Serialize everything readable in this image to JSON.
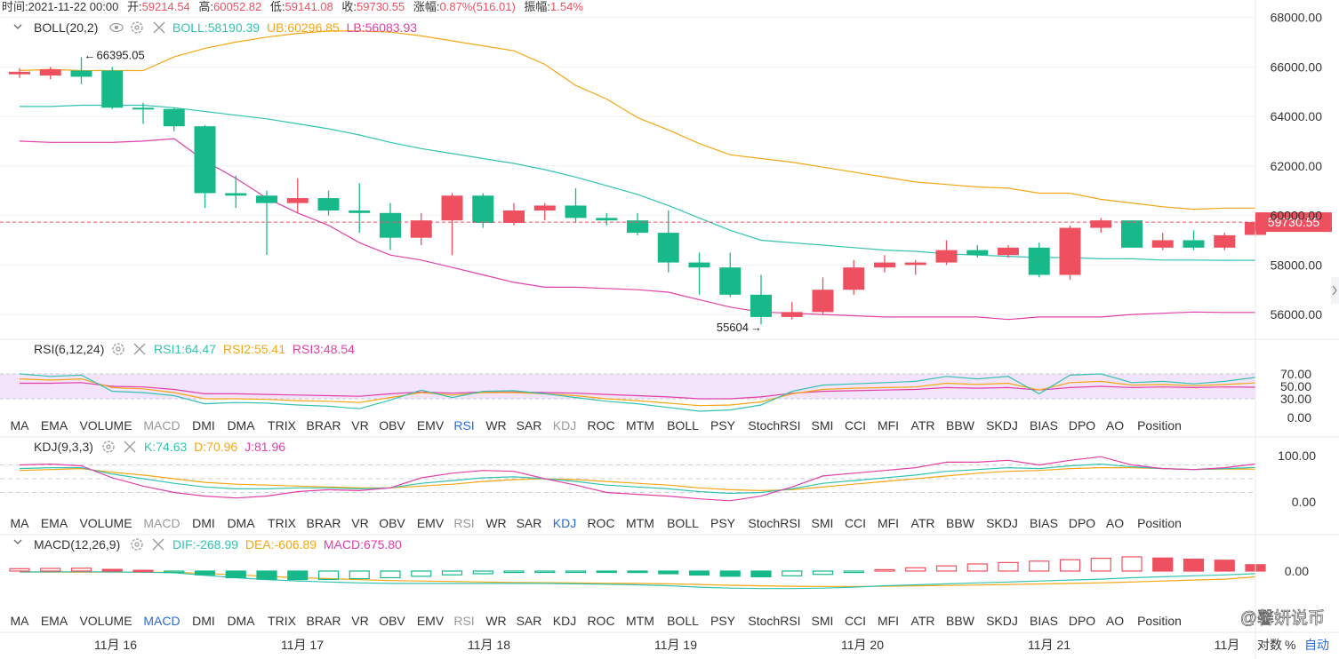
{
  "info_bar": {
    "time_label": "时间:",
    "time": "2021-11-22 00:00",
    "open_label": "开:",
    "open": "59214.54",
    "high_label": "高:",
    "high": "60052.82",
    "low_label": "低:",
    "low": "59141.08",
    "close_label": "收:",
    "close": "59730.55",
    "change_label": "涨幅:",
    "change": "0.87%(516.01)",
    "amplitude_label": "振幅:",
    "amplitude": "1.54%"
  },
  "colors": {
    "up": "#ef5060",
    "down": "#17b98a",
    "boll": "#33c3b0",
    "ub": "#f5a614",
    "lb": "#e040a8",
    "rsi1": "#33c3b0",
    "rsi2": "#f5a614",
    "rsi3": "#e040a8",
    "kdj_k": "#33c3b0",
    "kdj_d": "#f5a614",
    "kdj_j": "#e040a8",
    "active_tab": "#2b6bd9"
  },
  "main_pane": {
    "indicator_label": "BOLL(20,2)",
    "boll_value": "BOLL:58190.39",
    "ub_value": "UB:60296.85",
    "lb_value": "LB:56083.93",
    "price_marker": "59730.55",
    "high_marker": "66395.05",
    "high_arrow": "←",
    "low_marker": "55604",
    "low_arrow": "→",
    "y_ticks": [
      "68000.00",
      "66000.00",
      "64000.00",
      "62000.00",
      "60000.00",
      "58000.00",
      "56000.00"
    ]
  },
  "rsi_pane": {
    "label": "RSI(6,12,24)",
    "values": [
      "RSI1:64.47",
      "RSI2:55.41",
      "RSI3:48.54"
    ],
    "y_ticks": [
      "70.00",
      "50.00",
      "30.00",
      "0.00"
    ]
  },
  "kdj_pane": {
    "label": "KDJ(9,3,3)",
    "values": [
      "K:74.63",
      "D:70.96",
      "J:81.96"
    ],
    "y_ticks": [
      "100.00",
      "0.00"
    ]
  },
  "macd_pane": {
    "label": "MACD(12,26,9)",
    "values": [
      "DIF:-268.99",
      "DEA:-606.89",
      "MACD:675.80"
    ],
    "y_ticks": [
      "0.00"
    ]
  },
  "indicator_tabs": [
    "MA",
    "EMA",
    "VOLUME",
    "MACD",
    "DMI",
    "DMA",
    "TRIX",
    "BRAR",
    "VR",
    "OBV",
    "EMV",
    "RSI",
    "WR",
    "SAR",
    "KDJ",
    "ROC",
    "MTM",
    "BOLL",
    "PSY",
    "StochRSI",
    "SMI",
    "CCI",
    "MFI",
    "ATR",
    "BBW",
    "SKDJ",
    "BIAS",
    "DPO",
    "AO",
    "Position"
  ],
  "tab_rows": [
    {
      "active": "RSI",
      "dimmed": [
        "MACD",
        "KDJ"
      ]
    },
    {
      "active": "KDJ",
      "dimmed": [
        "MACD",
        "RSI"
      ]
    },
    {
      "active": "MACD",
      "dimmed": [
        "RSI"
      ]
    }
  ],
  "x_axis": {
    "labels": [
      "11月 16",
      "11月 17",
      "11月 18",
      "11月 19",
      "11月 20",
      "11月 21",
      "11月"
    ],
    "log_label": "对数",
    "percent_label": "%",
    "auto_label": "自动"
  },
  "watermark": "@馨妍说币",
  "chart_data": {
    "type": "candlestick",
    "interval": "4h",
    "ylim": [
      55000,
      68700
    ],
    "candles": [
      {
        "o": 65700,
        "h": 65950,
        "l": 65550,
        "c": 65800
      },
      {
        "o": 65650,
        "h": 66000,
        "l": 65500,
        "c": 65900
      },
      {
        "o": 65850,
        "h": 66395.05,
        "l": 65300,
        "c": 65600
      },
      {
        "o": 65850,
        "h": 66000,
        "l": 64300,
        "c": 64350
      },
      {
        "o": 64350,
        "h": 64550,
        "l": 63700,
        "c": 64300
      },
      {
        "o": 64300,
        "h": 64350,
        "l": 63400,
        "c": 63600
      },
      {
        "o": 63600,
        "h": 63650,
        "l": 60300,
        "c": 60900
      },
      {
        "o": 60900,
        "h": 61600,
        "l": 60300,
        "c": 60800
      },
      {
        "o": 60800,
        "h": 61000,
        "l": 58400,
        "c": 60500
      },
      {
        "o": 60500,
        "h": 61500,
        "l": 60100,
        "c": 60700
      },
      {
        "o": 60700,
        "h": 61000,
        "l": 60000,
        "c": 60200
      },
      {
        "o": 60200,
        "h": 61300,
        "l": 59300,
        "c": 60100
      },
      {
        "o": 60100,
        "h": 60500,
        "l": 58600,
        "c": 59100
      },
      {
        "o": 59100,
        "h": 60100,
        "l": 58800,
        "c": 59800
      },
      {
        "o": 59800,
        "h": 60900,
        "l": 58400,
        "c": 60800
      },
      {
        "o": 60800,
        "h": 60900,
        "l": 59500,
        "c": 59700
      },
      {
        "o": 59700,
        "h": 60500,
        "l": 59600,
        "c": 60200
      },
      {
        "o": 60200,
        "h": 60500,
        "l": 59800,
        "c": 60400
      },
      {
        "o": 60400,
        "h": 61100,
        "l": 59700,
        "c": 59900
      },
      {
        "o": 59900,
        "h": 60100,
        "l": 59600,
        "c": 59800
      },
      {
        "o": 59800,
        "h": 60100,
        "l": 59200,
        "c": 59300
      },
      {
        "o": 59300,
        "h": 60200,
        "l": 57700,
        "c": 58100
      },
      {
        "o": 58100,
        "h": 58500,
        "l": 56800,
        "c": 57900
      },
      {
        "o": 57900,
        "h": 58500,
        "l": 56700,
        "c": 56800
      },
      {
        "o": 56800,
        "h": 57600,
        "l": 55604,
        "c": 55900
      },
      {
        "o": 55900,
        "h": 56500,
        "l": 55800,
        "c": 56100
      },
      {
        "o": 56100,
        "h": 57500,
        "l": 56000,
        "c": 57000
      },
      {
        "o": 57000,
        "h": 58200,
        "l": 56800,
        "c": 57900
      },
      {
        "o": 57900,
        "h": 58400,
        "l": 57700,
        "c": 58100
      },
      {
        "o": 58000,
        "h": 58200,
        "l": 57600,
        "c": 58100
      },
      {
        "o": 58100,
        "h": 59000,
        "l": 58000,
        "c": 58600
      },
      {
        "o": 58600,
        "h": 58800,
        "l": 58300,
        "c": 58400
      },
      {
        "o": 58400,
        "h": 58800,
        "l": 58300,
        "c": 58700
      },
      {
        "o": 58700,
        "h": 58900,
        "l": 57500,
        "c": 57600
      },
      {
        "o": 57600,
        "h": 59600,
        "l": 57400,
        "c": 59500
      },
      {
        "o": 59500,
        "h": 59900,
        "l": 59300,
        "c": 59800
      },
      {
        "o": 59800,
        "h": 59800,
        "l": 58700,
        "c": 58700
      },
      {
        "o": 58700,
        "h": 59300,
        "l": 58600,
        "c": 59000
      },
      {
        "o": 59000,
        "h": 59400,
        "l": 58600,
        "c": 58700
      },
      {
        "o": 58700,
        "h": 59300,
        "l": 58600,
        "c": 59200
      },
      {
        "o": 59214.54,
        "h": 60052.82,
        "l": 59141.08,
        "c": 59730.55
      }
    ],
    "boll_mid": [
      64400,
      64400,
      64450,
      64450,
      64450,
      64350,
      64200,
      64050,
      63900,
      63700,
      63500,
      63250,
      62950,
      62700,
      62500,
      62300,
      62100,
      61850,
      61550,
      61200,
      60850,
      60400,
      59900,
      59400,
      59000,
      58900,
      58800,
      58700,
      58600,
      58550,
      58450,
      58400,
      58350,
      58300,
      58300,
      58250,
      58250,
      58200,
      58200,
      58190,
      58190.39
    ],
    "boll_ub": [
      65850,
      65900,
      65850,
      65850,
      65850,
      66400,
      66750,
      67000,
      67200,
      67350,
      67450,
      67450,
      67400,
      67250,
      67050,
      66850,
      66650,
      66100,
      65250,
      64700,
      63950,
      63450,
      62900,
      62450,
      62300,
      62150,
      61950,
      61750,
      61550,
      61350,
      61250,
      61150,
      61100,
      60900,
      60900,
      60650,
      60500,
      60350,
      60250,
      60296.85,
      60296.85
    ],
    "boll_lb": [
      63000,
      62950,
      62950,
      62950,
      63000,
      63100,
      62200,
      61500,
      60700,
      60100,
      59600,
      58900,
      58400,
      58200,
      57900,
      57600,
      57300,
      57100,
      57100,
      57050,
      57000,
      56900,
      56600,
      56300,
      56100,
      56050,
      56000,
      55950,
      55900,
      55900,
      55900,
      55900,
      55800,
      55900,
      55900,
      55900,
      56000,
      56050,
      56100,
      56083.93,
      56083.93
    ],
    "rsi1": [
      70,
      66,
      68,
      42,
      40,
      35,
      22,
      24,
      23,
      20,
      18,
      14,
      28,
      44,
      32,
      42,
      43,
      38,
      32,
      26,
      22,
      16,
      10,
      12,
      20,
      42,
      52,
      54,
      56,
      58,
      66,
      62,
      66,
      38,
      68,
      70,
      56,
      58,
      54,
      58,
      64.47
    ],
    "rsi2": [
      62,
      60,
      62,
      48,
      46,
      40,
      30,
      30,
      29,
      27,
      26,
      24,
      32,
      40,
      36,
      40,
      40,
      38,
      35,
      30,
      27,
      23,
      19,
      20,
      25,
      38,
      45,
      47,
      48,
      49,
      55,
      53,
      55,
      44,
      56,
      58,
      52,
      53,
      51,
      53,
      55.41
    ],
    "rsi3": [
      55,
      55,
      56,
      50,
      49,
      45,
      38,
      38,
      37,
      36,
      35,
      34,
      38,
      41,
      39,
      41,
      41,
      40,
      39,
      37,
      35,
      33,
      30,
      30,
      33,
      39,
      42,
      43,
      44,
      45,
      48,
      47,
      48,
      44,
      48,
      50,
      48,
      49,
      48,
      49,
      48.54
    ],
    "kdj_k": [
      72,
      74,
      74,
      60,
      50,
      40,
      32,
      28,
      28,
      30,
      30,
      28,
      30,
      40,
      46,
      52,
      54,
      50,
      44,
      36,
      32,
      28,
      22,
      18,
      20,
      28,
      40,
      46,
      52,
      58,
      66,
      70,
      74,
      72,
      78,
      82,
      76,
      72,
      70,
      72,
      74.63
    ],
    "kdj_d": [
      68,
      70,
      72,
      64,
      58,
      50,
      42,
      38,
      36,
      34,
      32,
      30,
      30,
      34,
      38,
      44,
      48,
      50,
      48,
      44,
      40,
      36,
      30,
      26,
      24,
      26,
      32,
      38,
      44,
      50,
      56,
      62,
      66,
      68,
      72,
      74,
      74,
      72,
      70,
      71,
      70.96
    ],
    "kdj_j": [
      80,
      82,
      78,
      52,
      34,
      20,
      12,
      8,
      12,
      22,
      26,
      24,
      30,
      52,
      62,
      68,
      66,
      50,
      36,
      20,
      16,
      12,
      6,
      2,
      12,
      32,
      56,
      62,
      68,
      74,
      86,
      86,
      90,
      80,
      90,
      98,
      80,
      72,
      70,
      74,
      81.96
    ],
    "macd_hist": [
      250,
      280,
      300,
      180,
      80,
      -50,
      -400,
      -700,
      -850,
      -900,
      -880,
      -800,
      -700,
      -550,
      -400,
      -280,
      -150,
      -80,
      -50,
      -60,
      -150,
      -280,
      -420,
      -550,
      -600,
      -500,
      -350,
      -150,
      150,
      350,
      550,
      750,
      900,
      1050,
      1200,
      1350,
      1500,
      1380,
      1260,
      1150,
      675.8
    ],
    "macd_dif": [
      -80,
      -80,
      -70,
      -90,
      -120,
      -180,
      -450,
      -700,
      -900,
      -1050,
      -1150,
      -1250,
      -1300,
      -1300,
      -1300,
      -1300,
      -1300,
      -1300,
      -1350,
      -1400,
      -1450,
      -1550,
      -1700,
      -1800,
      -1850,
      -1850,
      -1800,
      -1700,
      -1550,
      -1450,
      -1350,
      -1250,
      -1150,
      -1050,
      -950,
      -850,
      -700,
      -600,
      -500,
      -400,
      -268.99
    ],
    "macd_dea": [
      -110,
      -105,
      -100,
      -100,
      -100,
      -120,
      -250,
      -400,
      -550,
      -700,
      -800,
      -900,
      -1000,
      -1050,
      -1100,
      -1150,
      -1200,
      -1230,
      -1250,
      -1280,
      -1300,
      -1350,
      -1420,
      -1500,
      -1560,
      -1600,
      -1620,
      -1620,
      -1600,
      -1560,
      -1520,
      -1470,
      -1420,
      -1360,
      -1300,
      -1240,
      -1150,
      -1050,
      -950,
      -850,
      -606.89
    ]
  }
}
